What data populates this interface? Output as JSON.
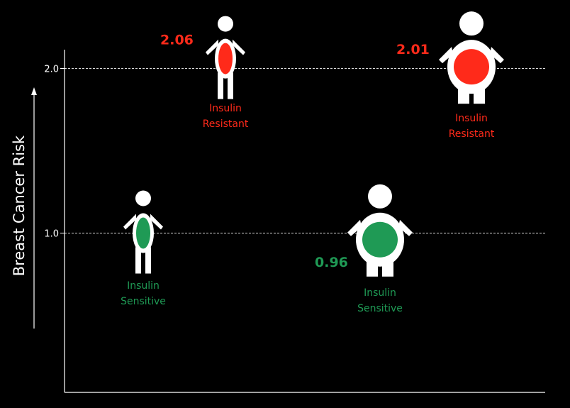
{
  "chart_data": {
    "type": "scatter",
    "ylabel": "Breast Cancer Risk",
    "xlabel": "",
    "ylim": [
      0,
      2.2
    ],
    "yticks": [
      1.0,
      2.0
    ],
    "ytick_labels": [
      "1.0",
      "2.0"
    ],
    "grid": true,
    "points": [
      {
        "id": "lean-sensitive",
        "body": "lean",
        "value": 1.0,
        "value_label": "",
        "group_line1": "Insulin",
        "group_line2": "Sensitive",
        "color": "#1f9a55"
      },
      {
        "id": "lean-resistant",
        "body": "lean",
        "value": 2.06,
        "value_label": "2.06",
        "group_line1": "Insulin",
        "group_line2": "Resistant",
        "color": "#ff2a1a"
      },
      {
        "id": "obese-sensitive",
        "body": "obese",
        "value": 0.96,
        "value_label": "0.96",
        "group_line1": "Insulin",
        "group_line2": "Sensitive",
        "color": "#1f9a55"
      },
      {
        "id": "obese-resistant",
        "body": "obese",
        "value": 2.01,
        "value_label": "2.01",
        "group_line1": "Insulin",
        "group_line2": "Resistant",
        "color": "#ff2a1a"
      }
    ]
  },
  "colors": {
    "background": "#000000",
    "axis": "#ffffff",
    "figure": "#ffffff",
    "sensitive": "#1f9a55",
    "resistant": "#ff2a1a"
  }
}
